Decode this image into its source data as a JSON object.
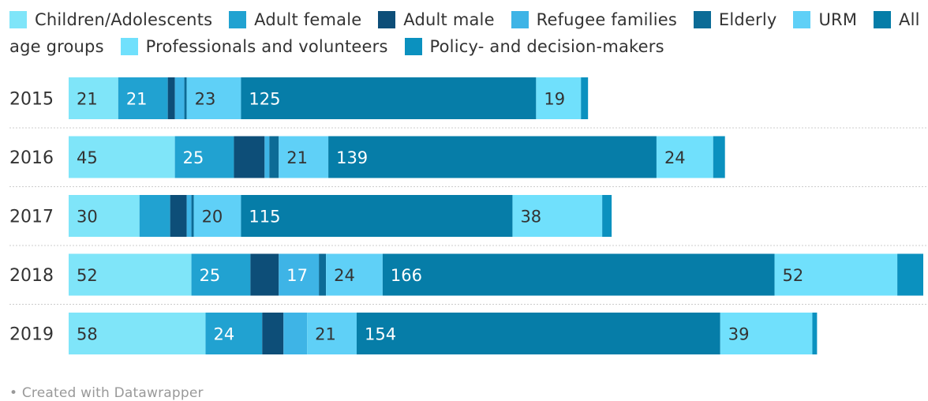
{
  "chart_data": {
    "type": "bar",
    "orientation": "horizontal",
    "stacked": true,
    "categories": [
      "2015",
      "2016",
      "2017",
      "2018",
      "2019"
    ],
    "series": [
      {
        "name": "Children/Adolescents",
        "color": "#7fe5f9",
        "values": [
          21,
          45,
          30,
          52,
          58
        ]
      },
      {
        "name": "Adult female",
        "color": "#21a2d1",
        "values": [
          21,
          25,
          13,
          25,
          24
        ]
      },
      {
        "name": "Adult male",
        "color": "#0d4e78",
        "values": [
          3,
          13,
          7,
          12,
          9
        ]
      },
      {
        "name": "Refugee families",
        "color": "#3eb4e6",
        "values": [
          4,
          2,
          2,
          17,
          10
        ]
      },
      {
        "name": "Elderly",
        "color": "#0c6b96",
        "values": [
          1,
          4,
          1,
          3,
          0
        ]
      },
      {
        "name": "URM",
        "color": "#5fd0f7",
        "values": [
          23,
          21,
          20,
          24,
          21
        ]
      },
      {
        "name": "All age groups",
        "color": "#067da8",
        "values": [
          125,
          139,
          115,
          166,
          154
        ]
      },
      {
        "name": "Professionals and volunteers",
        "color": "#70e0fc",
        "values": [
          19,
          24,
          38,
          52,
          39
        ]
      },
      {
        "name": "Policy- and decision-makers",
        "color": "#0b91bf",
        "values": [
          3,
          5,
          4,
          11,
          2
        ]
      }
    ],
    "data_labels": [
      [
        "21",
        "21",
        "",
        "",
        "",
        "23",
        "125",
        "19",
        ""
      ],
      [
        "45",
        "25",
        "",
        "",
        "",
        "21",
        "139",
        "24",
        ""
      ],
      [
        "30",
        "",
        "",
        "",
        "",
        "20",
        "115",
        "38",
        ""
      ],
      [
        "52",
        "25",
        "",
        "17",
        "",
        "24",
        "166",
        "52",
        ""
      ],
      [
        "58",
        "24",
        "",
        "",
        "",
        "21",
        "154",
        "39",
        ""
      ]
    ],
    "label_colors": [
      "#333333",
      "#ffffff",
      "#ffffff",
      "#ffffff",
      "#ffffff",
      "#333333",
      "#ffffff",
      "#333333",
      "#ffffff"
    ],
    "xlim": [
      0,
      364
    ],
    "legend_position": "top",
    "grid": false
  },
  "footer": "• Created with Datawrapper"
}
